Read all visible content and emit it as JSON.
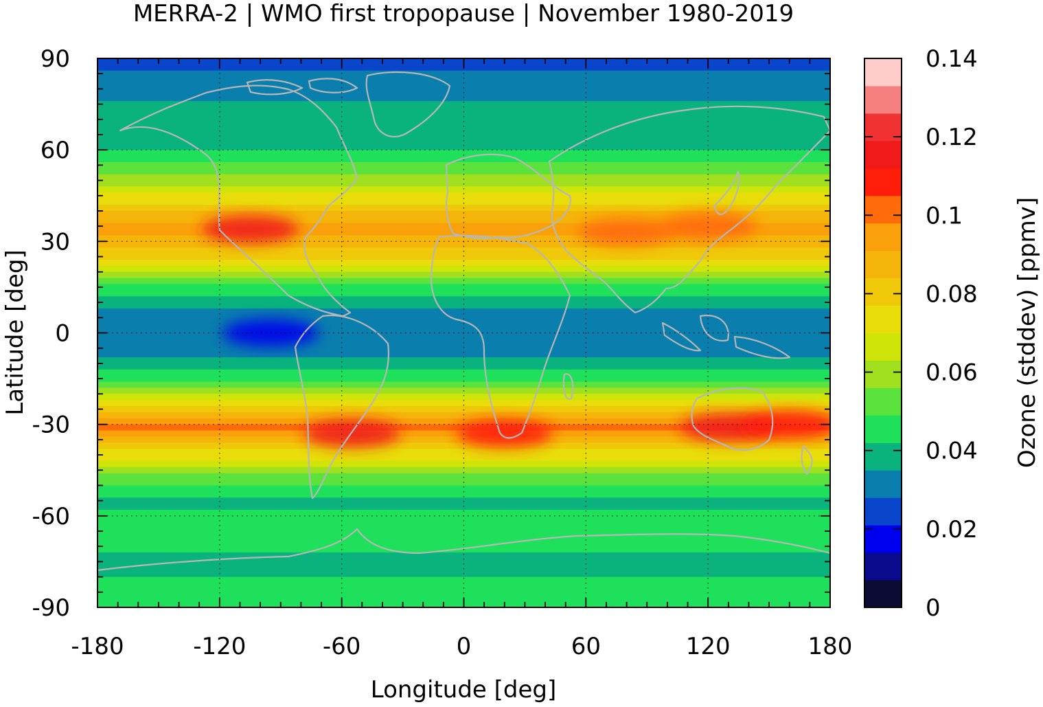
{
  "figure": {
    "title": "MERRA-2 | WMO first tropopause | November 1980-2019"
  },
  "chart_data": {
    "type": "heatmap",
    "title": "MERRA-2 | WMO first tropopause | November 1980-2019",
    "xlabel": "Longitude [deg]",
    "ylabel": "Latitude [deg]",
    "xlim": [
      -180,
      180
    ],
    "ylim": [
      -90,
      90
    ],
    "xticks": [
      -180,
      -120,
      -60,
      0,
      60,
      120,
      180
    ],
    "yticks": [
      90,
      60,
      30,
      0,
      -30,
      -60,
      -90
    ],
    "grid": true,
    "background": "coastlines",
    "colorbar": {
      "label": "Ozone (stddev) [ppmv]",
      "min": 0,
      "max": 0.14,
      "ticks": [
        0,
        0.02,
        0.04,
        0.06,
        0.08,
        0.1,
        0.12,
        0.14
      ],
      "levels": [
        {
          "from": 0.0,
          "to": 0.007,
          "color": "#0b0b33"
        },
        {
          "from": 0.007,
          "to": 0.014,
          "color": "#0a0a8c"
        },
        {
          "from": 0.014,
          "to": 0.021,
          "color": "#0000f0"
        },
        {
          "from": 0.021,
          "to": 0.028,
          "color": "#0a46cc"
        },
        {
          "from": 0.028,
          "to": 0.035,
          "color": "#0a7ead"
        },
        {
          "from": 0.035,
          "to": 0.042,
          "color": "#0ab37d"
        },
        {
          "from": 0.042,
          "to": 0.049,
          "color": "#1ee05a"
        },
        {
          "from": 0.049,
          "to": 0.056,
          "color": "#5be23c"
        },
        {
          "from": 0.056,
          "to": 0.063,
          "color": "#a0e01e"
        },
        {
          "from": 0.063,
          "to": 0.07,
          "color": "#cfe50a"
        },
        {
          "from": 0.07,
          "to": 0.077,
          "color": "#e8dc0a"
        },
        {
          "from": 0.077,
          "to": 0.084,
          "color": "#f0c80a"
        },
        {
          "from": 0.084,
          "to": 0.091,
          "color": "#f5b40a"
        },
        {
          "from": 0.091,
          "to": 0.098,
          "color": "#faa00a"
        },
        {
          "from": 0.098,
          "to": 0.105,
          "color": "#ff6a0a"
        },
        {
          "from": 0.105,
          "to": 0.112,
          "color": "#ff1e0a"
        },
        {
          "from": 0.112,
          "to": 0.119,
          "color": "#f01a1a"
        },
        {
          "from": 0.119,
          "to": 0.126,
          "color": "#f03232"
        },
        {
          "from": 0.126,
          "to": 0.133,
          "color": "#f58080"
        },
        {
          "from": 0.133,
          "to": 0.14,
          "color": "#ffcccc"
        }
      ]
    },
    "zonal_profile": [
      {
        "lat": 90,
        "value": 0.026
      },
      {
        "lat": 80,
        "value": 0.032
      },
      {
        "lat": 70,
        "value": 0.038
      },
      {
        "lat": 60,
        "value": 0.042
      },
      {
        "lat": 50,
        "value": 0.058
      },
      {
        "lat": 40,
        "value": 0.085
      },
      {
        "lat": 33,
        "value": 0.095
      },
      {
        "lat": 25,
        "value": 0.078
      },
      {
        "lat": 15,
        "value": 0.046
      },
      {
        "lat": 5,
        "value": 0.03
      },
      {
        "lat": 0,
        "value": 0.028
      },
      {
        "lat": -5,
        "value": 0.03
      },
      {
        "lat": -15,
        "value": 0.048
      },
      {
        "lat": -25,
        "value": 0.082
      },
      {
        "lat": -31,
        "value": 0.102
      },
      {
        "lat": -38,
        "value": 0.08
      },
      {
        "lat": -45,
        "value": 0.058
      },
      {
        "lat": -55,
        "value": 0.04
      },
      {
        "lat": -65,
        "value": 0.045
      },
      {
        "lat": -75,
        "value": 0.04
      },
      {
        "lat": -90,
        "value": 0.046
      }
    ],
    "hotspots": [
      {
        "lon": -105,
        "lat": 34,
        "value": 0.118
      },
      {
        "lon": -55,
        "lat": -33,
        "value": 0.115
      },
      {
        "lon": 20,
        "lat": -33,
        "value": 0.105
      },
      {
        "lon": 130,
        "lat": -31,
        "value": 0.112
      },
      {
        "lon": 160,
        "lat": -30,
        "value": 0.11
      },
      {
        "lon": 120,
        "lat": 35,
        "value": 0.1
      },
      {
        "lon": 80,
        "lat": 33,
        "value": 0.1
      },
      {
        "lon": -95,
        "lat": 0,
        "value": 0.02
      }
    ]
  }
}
